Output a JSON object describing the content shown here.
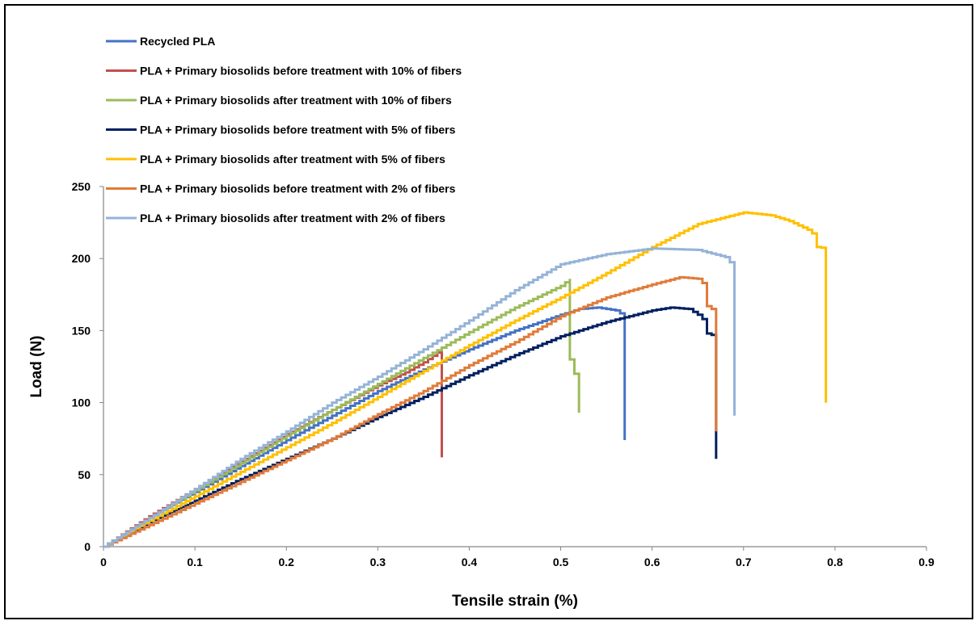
{
  "chart_data": {
    "type": "line",
    "xlabel": "Tensile strain (%)",
    "ylabel": "Load (N)",
    "xlim": [
      0,
      0.9
    ],
    "ylim": [
      0,
      250
    ],
    "x_ticks": [
      "0",
      "0.1",
      "0.2",
      "0.3",
      "0.4",
      "0.5",
      "0.6",
      "0.7",
      "0.8",
      "0.9"
    ],
    "y_ticks": [
      "0",
      "50",
      "100",
      "150",
      "200",
      "250"
    ],
    "grid": false,
    "legend_position": "top-left",
    "series": [
      {
        "name": "Recycled PLA",
        "color": "#4472C4",
        "points": [
          [
            0,
            0
          ],
          [
            0.05,
            20
          ],
          [
            0.1,
            38
          ],
          [
            0.15,
            56
          ],
          [
            0.2,
            74
          ],
          [
            0.25,
            91
          ],
          [
            0.3,
            108
          ],
          [
            0.35,
            123
          ],
          [
            0.4,
            137
          ],
          [
            0.45,
            150
          ],
          [
            0.5,
            161
          ],
          [
            0.52,
            165
          ],
          [
            0.54,
            166
          ],
          [
            0.56,
            164
          ],
          [
            0.57,
            160
          ],
          [
            0.57,
            74
          ]
        ]
      },
      {
        "name": "PLA + Primary biosolids before treatment with 10% of fibers",
        "color": "#C0504D",
        "points": [
          [
            0,
            0
          ],
          [
            0.05,
            21
          ],
          [
            0.1,
            40
          ],
          [
            0.15,
            59
          ],
          [
            0.2,
            78
          ],
          [
            0.25,
            95
          ],
          [
            0.3,
            112
          ],
          [
            0.33,
            121
          ],
          [
            0.35,
            128
          ],
          [
            0.37,
            137
          ],
          [
            0.37,
            62
          ]
        ]
      },
      {
        "name": "PLA + Primary biosolids after treatment with 10% of fibers",
        "color": "#9BBB59",
        "points": [
          [
            0,
            0
          ],
          [
            0.05,
            20
          ],
          [
            0.1,
            39
          ],
          [
            0.15,
            58
          ],
          [
            0.2,
            77
          ],
          [
            0.25,
            95
          ],
          [
            0.3,
            113
          ],
          [
            0.35,
            131
          ],
          [
            0.4,
            149
          ],
          [
            0.45,
            166
          ],
          [
            0.5,
            181
          ],
          [
            0.51,
            186
          ],
          [
            0.51,
            130
          ],
          [
            0.515,
            120
          ],
          [
            0.52,
            113
          ],
          [
            0.52,
            93
          ]
        ]
      },
      {
        "name": "PLA + Primary biosolids before treatment with 5% of fibers",
        "color": "#002060",
        "points": [
          [
            0,
            0
          ],
          [
            0.05,
            17
          ],
          [
            0.1,
            32
          ],
          [
            0.15,
            47
          ],
          [
            0.2,
            61
          ],
          [
            0.25,
            75
          ],
          [
            0.3,
            90
          ],
          [
            0.35,
            104
          ],
          [
            0.4,
            119
          ],
          [
            0.45,
            133
          ],
          [
            0.5,
            146
          ],
          [
            0.55,
            156
          ],
          [
            0.6,
            164
          ],
          [
            0.62,
            166
          ],
          [
            0.64,
            165
          ],
          [
            0.65,
            161
          ],
          [
            0.66,
            155
          ],
          [
            0.66,
            148
          ],
          [
            0.67,
            146
          ],
          [
            0.67,
            80
          ],
          [
            0.67,
            61
          ]
        ]
      },
      {
        "name": "PLA + Primary biosolids after treatment with 5% of fibers",
        "color": "#FFC000",
        "points": [
          [
            0,
            0
          ],
          [
            0.05,
            18
          ],
          [
            0.1,
            35
          ],
          [
            0.15,
            52
          ],
          [
            0.2,
            69
          ],
          [
            0.25,
            86
          ],
          [
            0.3,
            104
          ],
          [
            0.35,
            122
          ],
          [
            0.4,
            140
          ],
          [
            0.45,
            157
          ],
          [
            0.5,
            173
          ],
          [
            0.55,
            190
          ],
          [
            0.6,
            208
          ],
          [
            0.65,
            224
          ],
          [
            0.7,
            232
          ],
          [
            0.73,
            230
          ],
          [
            0.75,
            226
          ],
          [
            0.77,
            220
          ],
          [
            0.78,
            215
          ],
          [
            0.78,
            208
          ],
          [
            0.79,
            207
          ],
          [
            0.79,
            100
          ]
        ]
      },
      {
        "name": "PLA + Primary biosolids before treatment with 2% of fibers",
        "color": "#E07B39",
        "points": [
          [
            0,
            0
          ],
          [
            0.05,
            15
          ],
          [
            0.1,
            30
          ],
          [
            0.15,
            45
          ],
          [
            0.2,
            60
          ],
          [
            0.25,
            75
          ],
          [
            0.3,
            92
          ],
          [
            0.35,
            108
          ],
          [
            0.4,
            126
          ],
          [
            0.45,
            142
          ],
          [
            0.5,
            160
          ],
          [
            0.55,
            173
          ],
          [
            0.6,
            182
          ],
          [
            0.63,
            187
          ],
          [
            0.65,
            186
          ],
          [
            0.66,
            180
          ],
          [
            0.66,
            167
          ],
          [
            0.67,
            163
          ],
          [
            0.67,
            155
          ],
          [
            0.67,
            80
          ]
        ]
      },
      {
        "name": "PLA + Primary biosolids after treatment with 2% of fibers",
        "color": "#95B3D7",
        "points": [
          [
            0,
            0
          ],
          [
            0.05,
            20
          ],
          [
            0.1,
            40
          ],
          [
            0.15,
            61
          ],
          [
            0.2,
            80
          ],
          [
            0.25,
            100
          ],
          [
            0.3,
            118
          ],
          [
            0.35,
            137
          ],
          [
            0.4,
            157
          ],
          [
            0.45,
            178
          ],
          [
            0.5,
            196
          ],
          [
            0.55,
            203
          ],
          [
            0.6,
            207
          ],
          [
            0.65,
            206
          ],
          [
            0.68,
            201
          ],
          [
            0.69,
            194
          ],
          [
            0.69,
            91
          ]
        ]
      }
    ]
  }
}
